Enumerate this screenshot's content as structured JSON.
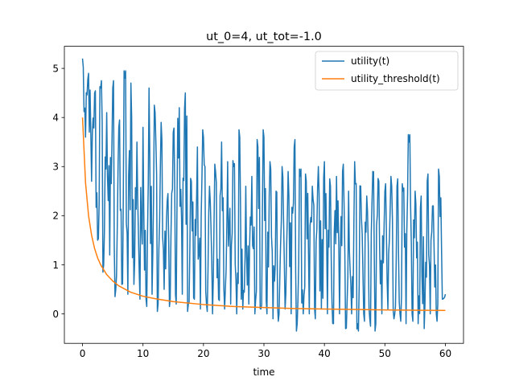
{
  "chart_data": {
    "type": "line",
    "title": "ut_0=4, ut_tot=-1.0",
    "xlabel": "time",
    "ylabel": "",
    "xlim": [
      -3.0,
      63.0
    ],
    "ylim": [
      -0.6,
      5.45
    ],
    "xticks": [
      0,
      10,
      20,
      30,
      40,
      50,
      60
    ],
    "yticks": [
      0,
      1,
      2,
      3,
      4,
      5
    ],
    "grid": false,
    "legend": {
      "placement": "top-right"
    },
    "series": [
      {
        "name": "utility(t)",
        "color": "#1f77b4",
        "x": [
          0.0,
          0.5,
          1.0,
          1.5,
          2.0,
          2.5,
          3.0,
          3.5,
          4.0,
          4.5,
          5.0,
          5.5,
          6.0,
          6.5,
          7.0,
          7.5,
          8.0,
          8.5,
          9.0,
          9.5,
          10.0,
          10.5,
          11.0,
          11.5,
          12.0,
          12.5,
          13.0,
          13.5,
          14.0,
          14.5,
          15.0,
          15.5,
          16.0,
          16.5,
          17.0,
          17.5,
          18.0,
          18.5,
          19.0,
          19.5,
          20.0,
          20.5,
          21.0,
          21.5,
          22.0,
          22.5,
          23.0,
          23.5,
          24.0,
          24.5,
          25.0,
          25.5,
          26.0,
          26.5,
          27.0,
          27.5,
          28.0,
          28.5,
          29.0,
          29.5,
          30.0,
          30.5,
          31.0,
          31.5,
          32.0,
          32.5,
          33.0,
          33.5,
          34.0,
          34.5,
          35.0,
          35.5,
          36.0,
          36.5,
          37.0,
          37.5,
          38.0,
          38.5,
          39.0,
          39.5,
          40.0,
          40.5,
          41.0,
          41.5,
          42.0,
          42.5,
          43.0,
          43.5,
          44.0,
          44.5,
          45.0,
          45.5,
          46.0,
          46.5,
          47.0,
          47.5,
          48.0,
          48.5,
          49.0,
          49.5,
          50.0,
          50.5,
          51.0,
          51.5,
          52.0,
          52.5,
          53.0,
          53.5,
          54.0,
          54.5,
          55.0,
          55.5,
          56.0,
          56.5,
          57.0,
          57.5,
          58.0,
          58.5,
          59.0,
          59.5,
          60.0
        ],
        "y": [
          5.2,
          3.6,
          4.9,
          2.7,
          4.5,
          1.5,
          4.6,
          1.0,
          4.1,
          1.2,
          4.6,
          0.5,
          3.8,
          0.6,
          4.8,
          0.4,
          4.7,
          0.6,
          3.5,
          0.3,
          3.8,
          0.3,
          4.6,
          0.4,
          4.1,
          0.2,
          3.9,
          0.5,
          2.3,
          0.3,
          3.7,
          0.2,
          4.2,
          0.4,
          4.5,
          0.2,
          2.7,
          0.3,
          3.4,
          0.1,
          3.6,
          0.2,
          2.6,
          0.0,
          2.9,
          0.3,
          3.5,
          0.1,
          3.1,
          0.2,
          3.0,
          0.0,
          3.6,
          0.1,
          2.6,
          0.2,
          2.8,
          0.0,
          3.4,
          0.1,
          3.6,
          0.0,
          3.1,
          -0.1,
          2.5,
          0.0,
          3.0,
          0.1,
          2.9,
          0.0,
          3.4,
          -0.2,
          2.8,
          0.0,
          2.7,
          0.0,
          2.6,
          -0.1,
          3.0,
          0.1,
          3.1,
          0.0,
          2.6,
          -0.2,
          2.8,
          0.0,
          2.9,
          -0.3,
          2.5,
          0.0,
          3.1,
          -0.2,
          2.6,
          0.0,
          2.4,
          -0.1,
          2.9,
          -0.2,
          2.7,
          0.0,
          2.5,
          0.1,
          2.8,
          -0.1,
          2.6,
          0.0,
          2.5,
          -0.2,
          3.5,
          0.0,
          2.5,
          -0.2,
          2.4,
          -0.3,
          2.7,
          0.0,
          2.2,
          0.0,
          2.8,
          0.3,
          0.4
        ],
        "noise_points_per_step": 4
      },
      {
        "name": "utility_threshold(t)",
        "color": "#ff7f0e",
        "x": [
          0,
          0.5,
          1,
          1.5,
          2,
          2.5,
          3,
          4,
          5,
          6,
          8,
          10,
          12,
          15,
          20,
          25,
          30,
          35,
          40,
          45,
          50,
          55,
          60
        ],
        "y": [
          4.0,
          2.67,
          2.0,
          1.6,
          1.33,
          1.14,
          1.0,
          0.8,
          0.67,
          0.57,
          0.44,
          0.36,
          0.31,
          0.25,
          0.19,
          0.15,
          0.13,
          0.11,
          0.1,
          0.09,
          0.08,
          0.075,
          0.07
        ]
      }
    ]
  }
}
